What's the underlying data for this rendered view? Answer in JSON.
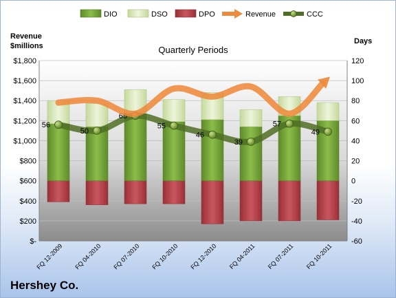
{
  "company": "Hershey Co.",
  "chart_data": {
    "type": "bar",
    "title": "Quarterly Periods",
    "ylabel_left": [
      "Revenue",
      "$millions"
    ],
    "ylabel_right": "Days",
    "categories": [
      "FQ 12-2009",
      "FQ 04-2010",
      "FQ 07-2010",
      "FQ 10-2010",
      "FQ 12-2010",
      "FQ 04-2011",
      "FQ 07-2011",
      "FQ 10-2011"
    ],
    "left_axis": {
      "min": 0,
      "max": 1800,
      "step": 200,
      "tick_labels": [
        "$-",
        "$200",
        "$400",
        "$600",
        "$800",
        "$1,000",
        "$1,200",
        "$1,400",
        "$1,600",
        "$1,800"
      ]
    },
    "right_axis": {
      "min": -60,
      "max": 120,
      "step": 20
    },
    "legend_position": "top",
    "series": [
      {
        "name": "DIO",
        "kind": "stacked-bar",
        "axis": "right",
        "color": "#76a23a",
        "values": [
          57,
          54,
          67,
          59,
          61,
          54,
          65,
          60
        ]
      },
      {
        "name": "DSO",
        "kind": "stacked-bar",
        "axis": "right",
        "color": "#d7e6b5",
        "values": [
          23,
          23,
          24,
          22,
          27,
          17,
          19,
          18
        ]
      },
      {
        "name": "DPO",
        "kind": "stacked-bar",
        "axis": "right",
        "color": "#b5434c",
        "values": [
          -21,
          -24,
          -23,
          -23,
          -43,
          -40,
          -40,
          -39
        ]
      },
      {
        "name": "Revenue",
        "kind": "line",
        "axis": "left",
        "color": "#ee8a3c",
        "values": [
          1380,
          1400,
          1270,
          1520,
          1440,
          1540,
          1270,
          1620
        ]
      },
      {
        "name": "CCC",
        "kind": "line-markers",
        "axis": "right",
        "color": "#4f6f24",
        "values": [
          56,
          50,
          65,
          55,
          46,
          39,
          57,
          49
        ],
        "labels": [
          "56",
          "50",
          "65",
          "55",
          "46",
          "39",
          "57",
          "49"
        ]
      }
    ]
  }
}
